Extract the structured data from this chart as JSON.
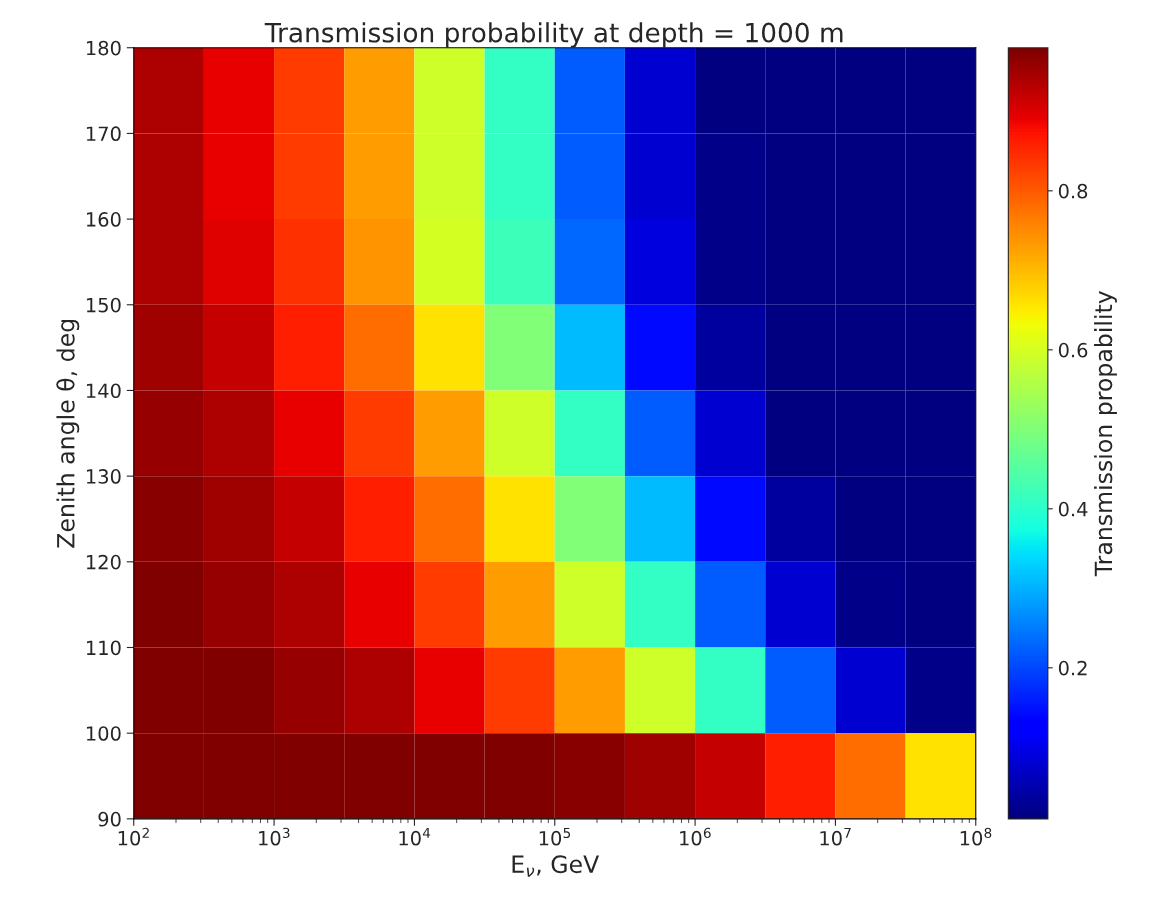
{
  "chart_data": {
    "type": "heatmap",
    "title": "Transmission probability at depth = 1000 m",
    "xlabel": "E$_{ν}$, GeV",
    "ylabel": "Zenith angle θ, deg",
    "clabel": "Transmission propability",
    "log": "x",
    "x": [
      178,
      562,
      1778,
      5623,
      17783,
      56234,
      177828,
      562341,
      1778279,
      5623413,
      17782794,
      56234133
    ],
    "y": [
      175,
      165,
      155,
      145,
      135,
      125,
      115,
      105,
      95
    ],
    "cells": [
      [
        0.94,
        0.89,
        0.83,
        0.73,
        0.59,
        0.41,
        0.22,
        0.08,
        0.01,
        0.01,
        0.01,
        0.01
      ],
      [
        0.94,
        0.89,
        0.83,
        0.73,
        0.59,
        0.41,
        0.22,
        0.08,
        0.02,
        0.01,
        0.01,
        0.01
      ],
      [
        0.94,
        0.9,
        0.84,
        0.74,
        0.6,
        0.42,
        0.23,
        0.09,
        0.02,
        0.01,
        0.01,
        0.01
      ],
      [
        0.95,
        0.92,
        0.86,
        0.78,
        0.66,
        0.5,
        0.31,
        0.14,
        0.04,
        0.01,
        0.01,
        0.01
      ],
      [
        0.96,
        0.94,
        0.89,
        0.83,
        0.73,
        0.59,
        0.41,
        0.22,
        0.08,
        0.01,
        0.01,
        0.01
      ],
      [
        0.97,
        0.95,
        0.92,
        0.86,
        0.78,
        0.66,
        0.5,
        0.31,
        0.14,
        0.04,
        0.01,
        0.01
      ],
      [
        0.98,
        0.96,
        0.94,
        0.89,
        0.83,
        0.73,
        0.59,
        0.41,
        0.22,
        0.08,
        0.02,
        0.01
      ],
      [
        0.98,
        0.98,
        0.96,
        0.94,
        0.89,
        0.83,
        0.73,
        0.59,
        0.41,
        0.22,
        0.08,
        0.02
      ],
      [
        0.98,
        0.98,
        0.98,
        0.98,
        0.98,
        0.98,
        0.97,
        0.95,
        0.92,
        0.86,
        0.78,
        0.66
      ]
    ],
    "xlim": [
      100,
      100000000
    ],
    "xticks": [
      {
        "value": 100,
        "label": "10$^{2}$"
      },
      {
        "value": 1000,
        "label": "10$^{3}$"
      },
      {
        "value": 10000,
        "label": "10$^{4}$"
      },
      {
        "value": 100000,
        "label": "10$^{5}$"
      },
      {
        "value": 1000000,
        "label": "10$^{6}$"
      },
      {
        "value": 10000000,
        "label": "10$^{7}$"
      },
      {
        "value": 100000000,
        "label": "10$^{8}$"
      }
    ],
    "ylim": [
      90,
      180
    ],
    "yticks": [
      90,
      100,
      110,
      120,
      130,
      140,
      150,
      160,
      170,
      180
    ],
    "clim": [
      0.01,
      0.98
    ],
    "cticks": [
      0.2,
      0.4,
      0.6,
      0.8
    ]
  }
}
